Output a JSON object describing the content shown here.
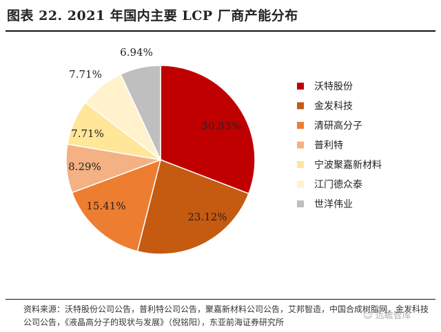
{
  "chart_data": {
    "type": "pie",
    "title": "图表 22. 2021 年国内主要 LCP 厂商产能分布",
    "unit": "%",
    "slices": [
      {
        "label": "沃特股份",
        "value": 30.83,
        "display": "30.83%",
        "color": "#C00000"
      },
      {
        "label": "金发科技",
        "value": 23.12,
        "display": "23.12%",
        "color": "#C55A11"
      },
      {
        "label": "清研高分子",
        "value": 15.41,
        "display": "15.41%",
        "color": "#ED7D31"
      },
      {
        "label": "普利特",
        "value": 8.29,
        "display": "8.29%",
        "color": "#F4B183"
      },
      {
        "label": "宁波聚嘉新材料",
        "value": 7.71,
        "display": "7.71%",
        "color": "#FFE699"
      },
      {
        "label": "江门德众泰",
        "value": 7.71,
        "display": "7.71%",
        "color": "#FFF2CC"
      },
      {
        "label": "世洋伟业",
        "value": 6.94,
        "display": "6.94%",
        "color": "#BFBFBF"
      }
    ],
    "legend_position": "right"
  },
  "source_text": "资料来源：沃特股份公司公告，普利特公司公告，聚嘉新材料公司公告，艾邦智造，中国合成树脂网，金发科技公司公告，《液晶高分子的现状与发展》（倪铭阳），东亚前海证券研究所",
  "watermark": "☺ 远瞻智库"
}
